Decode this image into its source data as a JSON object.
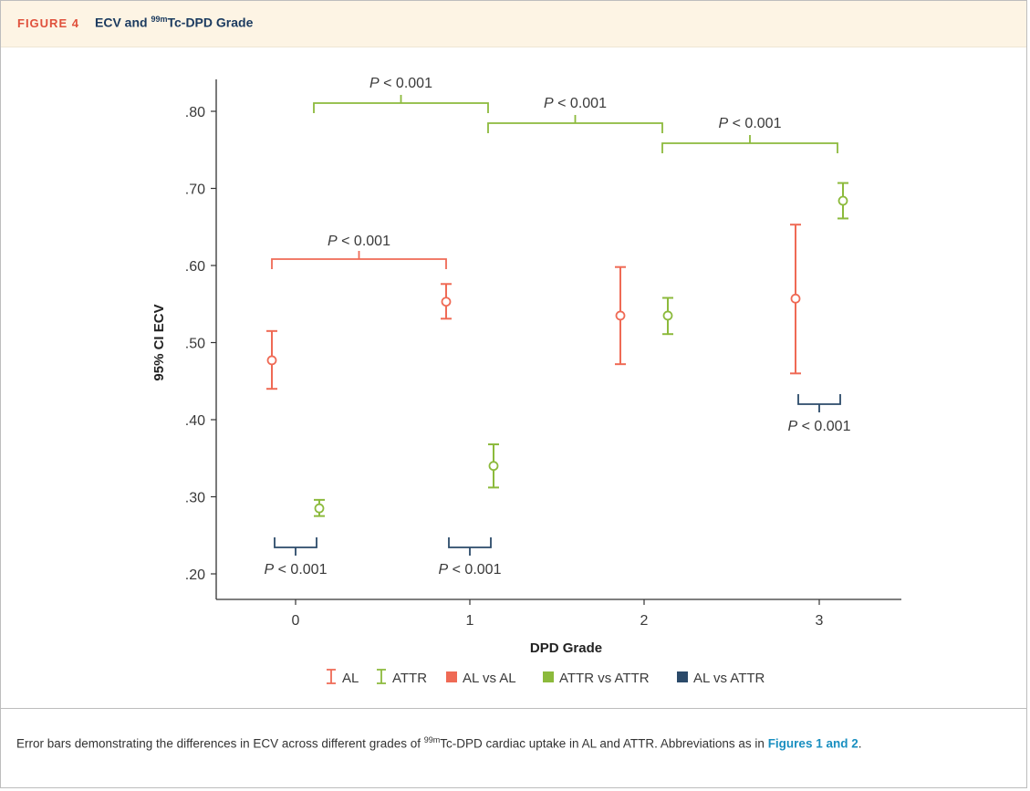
{
  "header": {
    "figure_label": "FIGURE 4",
    "title_pre": "ECV and ",
    "title_sup": "99m",
    "title_post": "Tc-DPD Grade"
  },
  "caption": {
    "text_pre": "Error bars demonstrating the differences in ECV across different grades of ",
    "sup": "99m",
    "text_post": "Tc-DPD cardiac uptake in AL and ATTR. Abbreviations as in ",
    "link": "Figures 1 and 2",
    "end": "."
  },
  "colors": {
    "AL": "#ef6a55",
    "ATTR": "#8cba3c",
    "AL_vs_ATTR": "#2b4a6a",
    "header_bg": "#fdf4e4",
    "figure_label": "#e0513c",
    "title": "#1b3a5f",
    "link": "#1a8fc0"
  },
  "chart_data": {
    "type": "scatter",
    "subtype": "error-bars",
    "xlabel": "DPD Grade",
    "ylabel": "95% CI ECV",
    "ylim": [
      0.2,
      0.8
    ],
    "x_ticks": [
      "0",
      "1",
      "2",
      "3"
    ],
    "y_ticks": [
      0.2,
      0.3,
      0.4,
      0.5,
      0.6,
      0.7,
      0.8
    ],
    "y_tick_labels": [
      ".20",
      ".30",
      ".40",
      ".50",
      ".60",
      ".70",
      ".80"
    ],
    "series": [
      {
        "name": "AL",
        "points": [
          {
            "x": 0,
            "mean": 0.477,
            "lo": 0.44,
            "hi": 0.515
          },
          {
            "x": 1,
            "mean": 0.553,
            "lo": 0.531,
            "hi": 0.576
          },
          {
            "x": 2,
            "mean": 0.535,
            "lo": 0.472,
            "hi": 0.598
          },
          {
            "x": 3,
            "mean": 0.557,
            "lo": 0.46,
            "hi": 0.653
          }
        ]
      },
      {
        "name": "ATTR",
        "points": [
          {
            "x": 0,
            "mean": 0.285,
            "lo": 0.275,
            "hi": 0.296
          },
          {
            "x": 1,
            "mean": 0.34,
            "lo": 0.312,
            "hi": 0.368
          },
          {
            "x": 2,
            "mean": 0.535,
            "lo": 0.511,
            "hi": 0.558
          },
          {
            "x": 3,
            "mean": 0.684,
            "lo": 0.661,
            "hi": 0.707
          }
        ]
      }
    ],
    "annotations": [
      {
        "group": "ATTR vs ATTR",
        "from": 0,
        "to": 1,
        "text": "P < 0.001"
      },
      {
        "group": "ATTR vs ATTR",
        "from": 1,
        "to": 2,
        "text": "P < 0.001"
      },
      {
        "group": "ATTR vs ATTR",
        "from": 2,
        "to": 3,
        "text": "P < 0.001"
      },
      {
        "group": "AL vs AL",
        "from": 0,
        "to": 1,
        "text": "P < 0.001"
      },
      {
        "group": "AL vs ATTR",
        "at": 0,
        "text": "P < 0.001"
      },
      {
        "group": "AL vs ATTR",
        "at": 1,
        "text": "P < 0.001"
      },
      {
        "group": "AL vs ATTR",
        "at": 3,
        "text": "P < 0.001"
      }
    ],
    "legend": {
      "placement": "bottom-center",
      "items": [
        {
          "label": "AL",
          "kind": "errorbar",
          "color_key": "AL"
        },
        {
          "label": "ATTR",
          "kind": "errorbar",
          "color_key": "ATTR"
        },
        {
          "label": "AL vs AL",
          "kind": "square",
          "color_key": "AL"
        },
        {
          "label": "ATTR vs ATTR",
          "kind": "square",
          "color_key": "ATTR"
        },
        {
          "label": "AL vs ATTR",
          "kind": "square",
          "color_key": "AL_vs_ATTR"
        }
      ]
    }
  }
}
